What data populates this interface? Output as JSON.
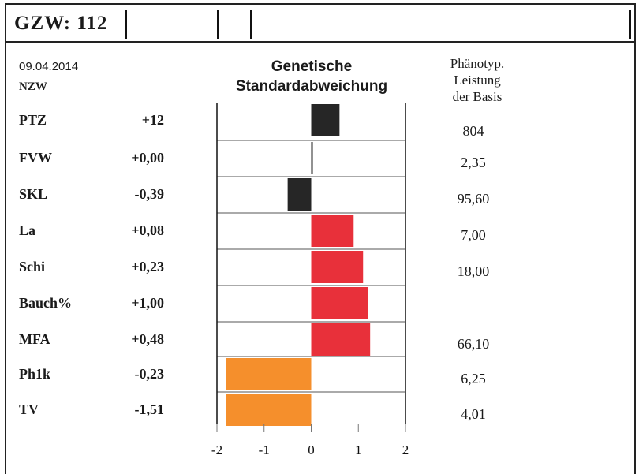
{
  "header": {
    "title": "GZW:  112"
  },
  "meta": {
    "date": "09.04.2014",
    "breed": "NZW"
  },
  "chart_title": [
    "Genetische",
    "Standardabweichung"
  ],
  "pheno_title": [
    "Phänotyp.",
    "Leistung",
    "der Basis"
  ],
  "colors": {
    "dark": "#262626",
    "red": "#e8303a",
    "orange": "#f58f2c"
  },
  "chart_data": {
    "type": "bar",
    "orientation": "horizontal",
    "xlim": [
      -2,
      2
    ],
    "x_ticks": [
      "-2",
      "-1",
      "0",
      "1",
      "2"
    ],
    "categories": [
      "PTZ",
      "FVW",
      "SKL",
      "La",
      "Schi",
      "Bauch%",
      "MFA",
      "Ph1k",
      "TV"
    ],
    "values": [
      0.6,
      0.02,
      -0.5,
      0.9,
      1.1,
      1.2,
      1.25,
      -1.8,
      -1.8
    ],
    "bar_colors": [
      "dark",
      "dark",
      "dark",
      "red",
      "red",
      "red",
      "red",
      "orange",
      "orange"
    ],
    "value_labels": [
      "+12",
      "+0,00",
      "-0,39",
      "+0,08",
      "+0,23",
      "+1,00",
      "+0,48",
      "-0,23",
      "-1,51"
    ],
    "base_values": [
      "804",
      "2,35",
      "95,60",
      "7,00",
      "18,00",
      "",
      "66,10",
      "6,25",
      "4,01"
    ]
  }
}
